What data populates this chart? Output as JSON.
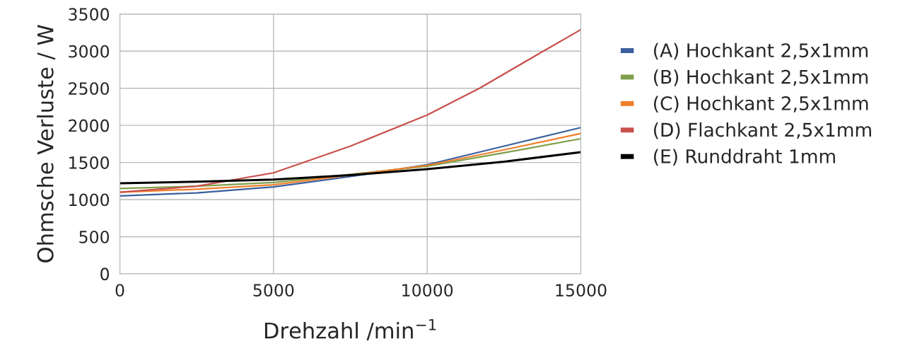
{
  "chart_data": {
    "type": "line",
    "xlabel": "Drehzahl /min$^{−1}$",
    "ylabel": "Ohmsche Verluste / W",
    "x": [
      0,
      2500,
      5000,
      7500,
      10000,
      12500,
      15000
    ],
    "series": [
      {
        "name": "(A) Hochkant 2,5x1mm",
        "color": "#3a5f9e",
        "values": [
          1050,
          1090,
          1170,
          1310,
          1470,
          1720,
          1970
        ]
      },
      {
        "name": "(B) Hochkant 2,5x1mm",
        "color": "#7f9f4a",
        "values": [
          1150,
          1180,
          1230,
          1340,
          1450,
          1630,
          1820
        ]
      },
      {
        "name": "(C) Hochkant 2,5x1mm",
        "color": "#f07f2a",
        "values": [
          1100,
          1140,
          1200,
          1330,
          1460,
          1670,
          1890
        ]
      },
      {
        "name": "(D) Flachkant 2,5x1mm",
        "color": "#c9504c",
        "x": [
          0,
          2500,
          5000,
          7500,
          10000,
          11700,
          13780,
          15000
        ],
        "values": [
          1100,
          1180,
          1360,
          1720,
          2140,
          2500,
          3000,
          3290
        ]
      },
      {
        "name": "(E) Runddraht 1mm",
        "color": "#000000",
        "values": [
          1220,
          1240,
          1270,
          1330,
          1410,
          1510,
          1640
        ]
      }
    ],
    "xlim": [
      0,
      15000
    ],
    "xticks": [
      0,
      5000,
      10000,
      15000
    ],
    "ylim": [
      0,
      3500
    ],
    "yticks": [
      0,
      500,
      1000,
      1500,
      2000,
      2500,
      3000,
      3500
    ],
    "grid": true,
    "legend": "right",
    "marker": "none",
    "line_style": "solid"
  }
}
